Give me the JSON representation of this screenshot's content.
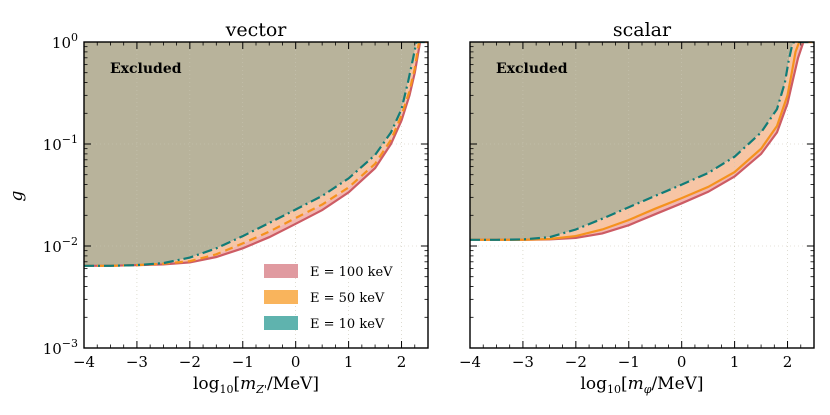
{
  "chart_data": [
    {
      "type": "area",
      "title": "vector",
      "xlabel": "log10[m_Z'/MeV]",
      "ylabel": "g",
      "xlim": [
        -4,
        2.5
      ],
      "ylim": [
        0.001,
        1
      ],
      "yscale": "log",
      "x_ticks": [
        -4,
        -3,
        -2,
        -1,
        0,
        1,
        2
      ],
      "y_ticks": [
        0.001,
        0.01,
        0.1,
        1
      ],
      "annotation": "Excluded",
      "series": [
        {
          "name": "E = 100 keV",
          "style": "solid",
          "color": "#cd5c64",
          "x": [
            -4,
            -3.5,
            -3,
            -2.5,
            -2,
            -1.5,
            -1,
            -0.5,
            0,
            0.5,
            1,
            1.5,
            1.8,
            2.0,
            2.15,
            2.25,
            2.35,
            2.5
          ],
          "y": [
            0.0064,
            0.0064,
            0.0065,
            0.0066,
            0.0069,
            0.0078,
            0.0095,
            0.0122,
            0.0165,
            0.0225,
            0.0335,
            0.058,
            0.1,
            0.17,
            0.3,
            0.5,
            1.0,
            1.0
          ]
        },
        {
          "name": "E = 50 keV",
          "style": "dashed",
          "color": "#f5921e",
          "x": [
            -4,
            -3.5,
            -3,
            -2.5,
            -2,
            -1.5,
            -1,
            -0.5,
            0,
            0.5,
            1,
            1.5,
            1.8,
            2.0,
            2.15,
            2.25,
            2.33,
            2.5
          ],
          "y": [
            0.0064,
            0.0064,
            0.0065,
            0.0067,
            0.0071,
            0.0083,
            0.0106,
            0.0138,
            0.0188,
            0.0255,
            0.0375,
            0.064,
            0.11,
            0.19,
            0.33,
            0.55,
            1.0,
            1.0
          ]
        },
        {
          "name": "E = 10 keV",
          "style": "dashdot",
          "color": "#117c78",
          "x": [
            -4,
            -3.5,
            -3,
            -2.5,
            -2,
            -1.5,
            -1,
            -0.5,
            0,
            0.5,
            1,
            1.5,
            1.8,
            2.0,
            2.12,
            2.22,
            2.28,
            2.5
          ],
          "y": [
            0.0064,
            0.0064,
            0.0065,
            0.0068,
            0.0077,
            0.0095,
            0.0125,
            0.0168,
            0.0228,
            0.031,
            0.046,
            0.078,
            0.13,
            0.22,
            0.4,
            0.7,
            1.0,
            1.0
          ]
        }
      ],
      "legend": [
        {
          "label": "E = 100 keV",
          "color": "#e09aa0"
        },
        {
          "label": "E = 50 keV",
          "color": "#f9b45c"
        },
        {
          "label": "E = 10 keV",
          "color": "#5fb3ae"
        }
      ]
    },
    {
      "type": "area",
      "title": "scalar",
      "xlabel": "log10[m_φ/MeV]",
      "ylabel": "",
      "xlim": [
        -4,
        2.5
      ],
      "ylim": [
        0.001,
        1
      ],
      "yscale": "log",
      "x_ticks": [
        -4,
        -3,
        -2,
        -1,
        0,
        1,
        2
      ],
      "y_ticks": [
        0.001,
        0.01,
        0.1,
        1
      ],
      "annotation": "Excluded",
      "series": [
        {
          "name": "E = 100 keV",
          "style": "solid",
          "color": "#cd5c64",
          "x": [
            -4,
            -3.5,
            -3,
            -2.5,
            -2,
            -1.5,
            -1,
            -0.5,
            0,
            0.5,
            1,
            1.5,
            1.8,
            2.0,
            2.1,
            2.2,
            2.3,
            2.5
          ],
          "y": [
            0.0115,
            0.0115,
            0.0115,
            0.0116,
            0.012,
            0.0133,
            0.016,
            0.0205,
            0.0262,
            0.034,
            0.048,
            0.08,
            0.13,
            0.25,
            0.42,
            0.7,
            1.0,
            1.0
          ]
        },
        {
          "name": "E = 50 keV",
          "style": "solid",
          "color": "#f5921e",
          "x": [
            -4,
            -3.5,
            -3,
            -2.5,
            -2,
            -1.5,
            -1,
            -0.5,
            0,
            0.5,
            1,
            1.5,
            1.8,
            2.0,
            2.08,
            2.15,
            2.22,
            2.5
          ],
          "y": [
            0.0115,
            0.0115,
            0.0115,
            0.0117,
            0.0125,
            0.0145,
            0.018,
            0.0232,
            0.0295,
            0.038,
            0.053,
            0.09,
            0.15,
            0.3,
            0.5,
            0.8,
            1.0,
            1.0
          ]
        },
        {
          "name": "E = 10 keV",
          "style": "dashdot",
          "color": "#117c78",
          "x": [
            -4,
            -3.5,
            -3,
            -2.5,
            -2,
            -1.5,
            -1,
            -0.5,
            0,
            0.5,
            1,
            1.5,
            1.8,
            1.95,
            2.02,
            2.08,
            2.12,
            2.5
          ],
          "y": [
            0.0115,
            0.0115,
            0.0116,
            0.0122,
            0.0145,
            0.0185,
            0.024,
            0.031,
            0.04,
            0.052,
            0.075,
            0.13,
            0.22,
            0.4,
            0.65,
            0.9,
            1.0,
            1.0
          ]
        }
      ]
    }
  ]
}
